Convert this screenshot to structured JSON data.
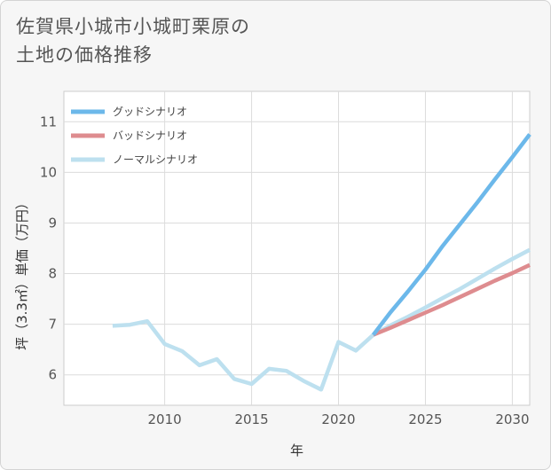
{
  "title_lines": [
    "佐賀県小城市小城町栗原の",
    "土地の価格推移"
  ],
  "chart_data": {
    "type": "line",
    "title": "佐賀県小城市小城町栗原の土地の価格推移",
    "xlabel": "年",
    "ylabel": "坪（3.3㎡）単価（万円）",
    "xlim": [
      2004.2,
      2031
    ],
    "ylim": [
      5.4,
      11.6
    ],
    "xticks": [
      2010,
      2015,
      2020,
      2025,
      2030
    ],
    "yticks": [
      6,
      7,
      8,
      9,
      10,
      11
    ],
    "grid": true,
    "legend_position": "top-left",
    "colors": {
      "good": "#6cb8ea",
      "bad": "#de8c8f",
      "normal": "#bde0ef"
    },
    "series": [
      {
        "key": "good",
        "name": "グッドシナリオ",
        "x": [
          2022,
          2023,
          2024,
          2025,
          2026,
          2027,
          2028,
          2029,
          2030,
          2031
        ],
        "values": [
          6.79,
          7.24,
          7.65,
          8.08,
          8.55,
          8.98,
          9.41,
          9.86,
          10.3,
          10.75
        ]
      },
      {
        "key": "bad",
        "name": "バッドシナリオ",
        "x": [
          2022,
          2023,
          2024,
          2025,
          2026,
          2027,
          2028,
          2029,
          2030,
          2031
        ],
        "values": [
          6.79,
          6.93,
          7.08,
          7.23,
          7.38,
          7.54,
          7.7,
          7.86,
          8.01,
          8.17
        ]
      },
      {
        "key": "normal",
        "name": "ノーマルシナリオ",
        "x": [
          2007,
          2008,
          2009,
          2010,
          2011,
          2012,
          2013,
          2014,
          2015,
          2016,
          2017,
          2018,
          2019,
          2020,
          2021,
          2022,
          2023,
          2024,
          2025,
          2026,
          2027,
          2028,
          2029,
          2030,
          2031
        ],
        "values": [
          6.97,
          6.99,
          7.06,
          6.61,
          6.47,
          6.19,
          6.31,
          5.92,
          5.82,
          6.12,
          6.08,
          5.88,
          5.71,
          6.65,
          6.48,
          6.79,
          6.98,
          7.15,
          7.33,
          7.52,
          7.7,
          7.9,
          8.1,
          8.29,
          8.47
        ]
      }
    ]
  }
}
